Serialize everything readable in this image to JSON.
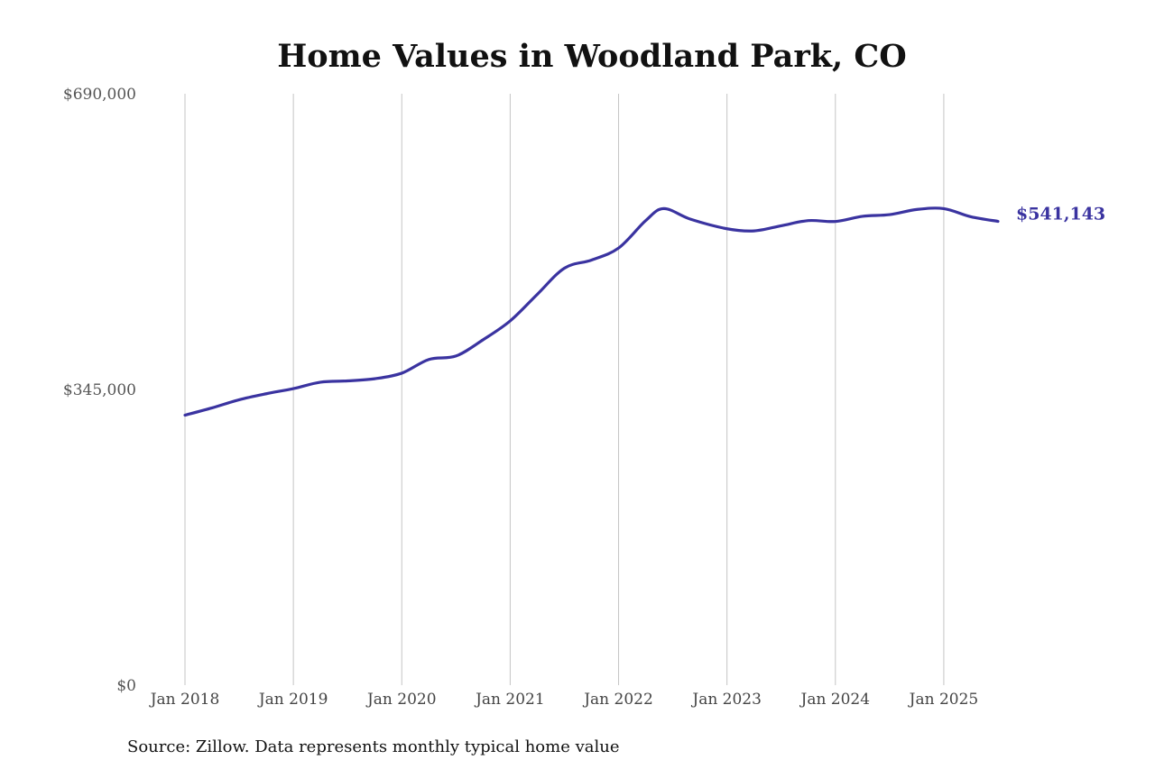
{
  "chart_data": {
    "type": "line",
    "title": "Home Values in Woodland Park, CO",
    "xlabel": "",
    "ylabel": "",
    "ylim": [
      0,
      690000
    ],
    "y_ticks": [
      {
        "value": 0,
        "label": "$0"
      },
      {
        "value": 345000,
        "label": "$345,000"
      },
      {
        "value": 690000,
        "label": "$690,000"
      }
    ],
    "x_ticks": [
      {
        "value": "2018-01",
        "label": "Jan 2018"
      },
      {
        "value": "2019-01",
        "label": "Jan 2019"
      },
      {
        "value": "2020-01",
        "label": "Jan 2020"
      },
      {
        "value": "2021-01",
        "label": "Jan 2021"
      },
      {
        "value": "2022-01",
        "label": "Jan 2022"
      },
      {
        "value": "2023-01",
        "label": "Jan 2023"
      },
      {
        "value": "2024-01",
        "label": "Jan 2024"
      },
      {
        "value": "2025-01",
        "label": "Jan 2025"
      }
    ],
    "xlim": [
      "2018-01",
      "2025-07"
    ],
    "grid": "vertical",
    "series": [
      {
        "color": "#3a33a0",
        "end_label": "$541,143",
        "points": [
          {
            "x": "2018-01",
            "y": 315000
          },
          {
            "x": "2018-04",
            "y": 323500
          },
          {
            "x": "2018-07",
            "y": 333000
          },
          {
            "x": "2018-10",
            "y": 340000
          },
          {
            "x": "2019-01",
            "y": 346000
          },
          {
            "x": "2019-04",
            "y": 353500
          },
          {
            "x": "2019-07",
            "y": 355000
          },
          {
            "x": "2019-10",
            "y": 357500
          },
          {
            "x": "2020-01",
            "y": 364000
          },
          {
            "x": "2020-04",
            "y": 380000
          },
          {
            "x": "2020-07",
            "y": 384000
          },
          {
            "x": "2020-10",
            "y": 403000
          },
          {
            "x": "2021-01",
            "y": 425000
          },
          {
            "x": "2021-04",
            "y": 456000
          },
          {
            "x": "2021-07",
            "y": 486500
          },
          {
            "x": "2021-10",
            "y": 496000
          },
          {
            "x": "2022-01",
            "y": 510000
          },
          {
            "x": "2022-04",
            "y": 542000
          },
          {
            "x": "2022-06",
            "y": 556000
          },
          {
            "x": "2022-09",
            "y": 543500
          },
          {
            "x": "2023-01",
            "y": 532500
          },
          {
            "x": "2023-04",
            "y": 530000
          },
          {
            "x": "2023-07",
            "y": 536000
          },
          {
            "x": "2023-10",
            "y": 542000
          },
          {
            "x": "2024-01",
            "y": 541000
          },
          {
            "x": "2024-04",
            "y": 547000
          },
          {
            "x": "2024-07",
            "y": 549000
          },
          {
            "x": "2024-10",
            "y": 555000
          },
          {
            "x": "2025-01",
            "y": 556000
          },
          {
            "x": "2025-04",
            "y": 546500
          },
          {
            "x": "2025-07",
            "y": 541143
          }
        ]
      }
    ],
    "source": "Source: Zillow. Data represents monthly typical home value"
  }
}
